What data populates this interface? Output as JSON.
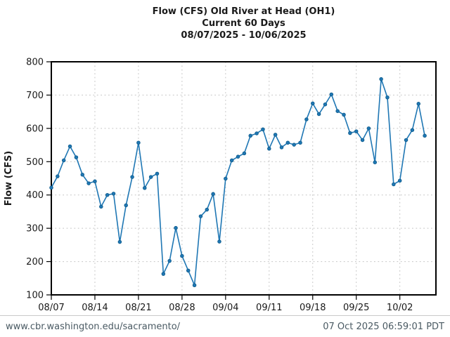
{
  "header": {
    "title": "Flow (CFS) Old River at Head (OH1)",
    "subtitle": "Current 60 Days",
    "date_range": "08/07/2025 - 10/06/2025"
  },
  "footer": {
    "url": "www.cbr.washington.edu/sacramento/",
    "timestamp": "07 Oct 2025 06:59:01 PDT"
  },
  "chart_data": {
    "type": "line",
    "title": "Flow (CFS) Old River at Head (OH1)",
    "subtitle": "Current 60 Days",
    "date_range": "08/07/2025 - 10/06/2025",
    "ylabel": "Flow (CFS)",
    "xlabel": "",
    "ylim": [
      100,
      800
    ],
    "ytick_labels": [
      "100",
      "200",
      "300",
      "400",
      "500",
      "600",
      "700",
      "800"
    ],
    "xtick_labels": [
      "08/07",
      "08/14",
      "08/21",
      "08/28",
      "09/04",
      "09/11",
      "09/18",
      "09/25",
      "10/02"
    ],
    "xtick_days": [
      0,
      7,
      14,
      21,
      28,
      35,
      42,
      49,
      56
    ],
    "x_days_max": 61.8,
    "grid": true,
    "legend_position": "none",
    "line_color": "#1f77b4",
    "marker_edge_color": "#105d8d",
    "x": [
      "08/07",
      "08/08",
      "08/09",
      "08/10",
      "08/11",
      "08/12",
      "08/13",
      "08/14",
      "08/15",
      "08/16",
      "08/17",
      "08/18",
      "08/19",
      "08/20",
      "08/21",
      "08/22",
      "08/23",
      "08/24",
      "08/25",
      "08/26",
      "08/27",
      "08/28",
      "08/29",
      "08/30",
      "08/31",
      "09/01",
      "09/02",
      "09/03",
      "09/04",
      "09/05",
      "09/06",
      "09/07",
      "09/08",
      "09/09",
      "09/10",
      "09/11",
      "09/12",
      "09/13",
      "09/14",
      "09/15",
      "09/16",
      "09/17",
      "09/18",
      "09/19",
      "09/20",
      "09/21",
      "09/22",
      "09/23",
      "09/24",
      "09/25",
      "09/26",
      "09/27",
      "09/28",
      "09/29",
      "09/30",
      "10/01",
      "10/02",
      "10/03",
      "10/04",
      "10/05",
      "10/06"
    ],
    "values": [
      422,
      456,
      504,
      546,
      513,
      461,
      435,
      441,
      365,
      400,
      404,
      259,
      369,
      454,
      557,
      421,
      454,
      464,
      163,
      202,
      301,
      217,
      173,
      129,
      336,
      356,
      403,
      260,
      449,
      504,
      515,
      525,
      578,
      585,
      597,
      539,
      581,
      543,
      557,
      551,
      557,
      627,
      675,
      643,
      672,
      702,
      652,
      641,
      586,
      591,
      565,
      600,
      498,
      748,
      693,
      432,
      443,
      565,
      595,
      674,
      578
    ]
  }
}
